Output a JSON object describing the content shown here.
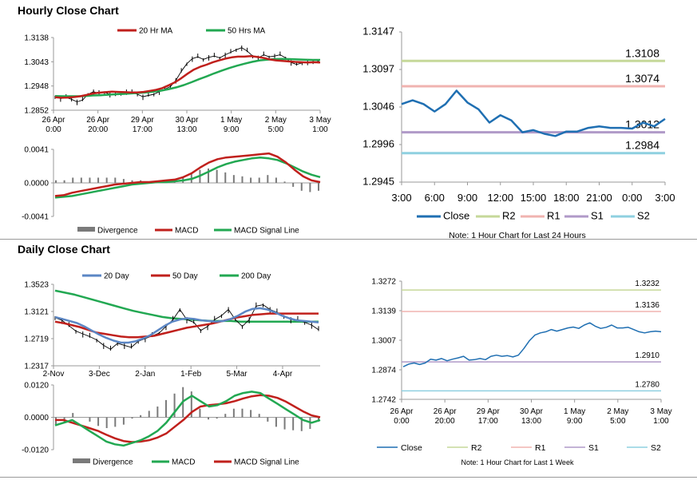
{
  "sections": {
    "hourly_title": "Hourly Close Chart",
    "daily_title": "Daily Close Chart"
  },
  "colors": {
    "price": "#000000",
    "ma_red": "#c0201c",
    "ma_green": "#22a852",
    "ma_blue": "#5b86c4",
    "close": "#1f6fb2",
    "r2": "#c6d89a",
    "r1": "#f0b3b0",
    "s1": "#b09ac8",
    "s2": "#8fd0e0",
    "divergence": "#7a7a7a",
    "axis": "#9a9a9a"
  },
  "chart_data": [
    {
      "id": "hourly-price",
      "type": "line",
      "title": "Hourly Close Chart",
      "legend": [
        "20 Hr MA",
        "50 Hrs MA"
      ],
      "y_ticks": [
        "1.3138",
        "1.3043",
        "1.2948",
        "1.2852"
      ],
      "ylim": [
        1.2852,
        1.3138
      ],
      "x_ticks": [
        [
          "26 Apr",
          "0:00"
        ],
        [
          "26 Apr",
          "20:00"
        ],
        [
          "29 Apr",
          "17:00"
        ],
        [
          "30 Apr",
          "13:00"
        ],
        [
          "1 May",
          "9:00"
        ],
        [
          "2 May",
          "5:00"
        ],
        [
          "3 May",
          "1:00"
        ]
      ],
      "series": [
        {
          "name": "Price",
          "values": [
            1.2905,
            1.2898,
            1.2902,
            1.2895,
            1.2885,
            1.2892,
            1.2915,
            1.2925,
            1.2918,
            1.2922,
            1.2915,
            1.2912,
            1.2918,
            1.2925,
            1.2921,
            1.2915,
            1.2905,
            1.291,
            1.2915,
            1.2925,
            1.2935,
            1.2945,
            1.297,
            1.3005,
            1.3035,
            1.3055,
            1.3062,
            1.3052,
            1.306,
            1.3065,
            1.3058,
            1.307,
            1.308,
            1.309,
            1.3098,
            1.3085,
            1.3065,
            1.3058,
            1.307,
            1.3062,
            1.3065,
            1.307,
            1.3058,
            1.304,
            1.3032,
            1.3038,
            1.3042,
            1.3038,
            1.3045
          ]
        },
        {
          "name": "20 Hr MA",
          "values": [
            1.2903,
            1.2901,
            1.2902,
            1.2904,
            1.2907,
            1.2912,
            1.2918,
            1.2921,
            1.2923,
            1.2925,
            1.2924,
            1.2923,
            1.2922,
            1.2922,
            1.2924,
            1.2928,
            1.2932,
            1.2939,
            1.295,
            1.2962,
            1.2978,
            1.2996,
            1.3012,
            1.3023,
            1.3031,
            1.3041,
            1.3048,
            1.3055,
            1.306,
            1.3063,
            1.3063,
            1.3065,
            1.3062,
            1.3058,
            1.3052,
            1.3048,
            1.3046,
            1.3044,
            1.3042,
            1.3041,
            1.304,
            1.3041,
            1.304
          ]
        },
        {
          "name": "50 Hrs MA",
          "values": [
            1.2908,
            1.2907,
            1.2907,
            1.2907,
            1.2908,
            1.291,
            1.2911,
            1.2913,
            1.2915,
            1.2916,
            1.2918,
            1.292,
            1.2922,
            1.2925,
            1.2929,
            1.2935,
            1.2942,
            1.2951,
            1.2962,
            1.2974,
            1.2985,
            1.2997,
            1.3008,
            1.3018,
            1.3027,
            1.3035,
            1.3042,
            1.3048,
            1.3051,
            1.3053,
            1.3054,
            1.3053,
            1.3052,
            1.3051,
            1.305,
            1.305
          ]
        }
      ]
    },
    {
      "id": "hourly-macd",
      "type": "line",
      "legend": [
        "Divergence",
        "MACD",
        "MACD Signal Line"
      ],
      "y_ticks": [
        "0.0041",
        "0.0000",
        "-0.0041"
      ],
      "ylim": [
        -0.0041,
        0.0041
      ],
      "series": [
        {
          "name": "MACD",
          "values": [
            -0.0016,
            -0.0015,
            -0.0012,
            -0.001,
            -0.0008,
            -0.0006,
            -0.0004,
            -0.0002,
            -0.0001,
            0.0,
            0.0001,
            0.0001,
            0.0002,
            0.0003,
            0.0004,
            0.0007,
            0.0012,
            0.0019,
            0.0025,
            0.0029,
            0.0031,
            0.0032,
            0.0033,
            0.0034,
            0.0035,
            0.0036,
            0.0032,
            0.0025,
            0.0016,
            0.0008,
            0.0003,
            0.0001
          ]
        },
        {
          "name": "MACD Signal Line",
          "values": [
            -0.0018,
            -0.0017,
            -0.0016,
            -0.0014,
            -0.0012,
            -0.001,
            -0.0008,
            -0.0006,
            -0.0004,
            -0.0002,
            -0.0001,
            0.0,
            0.0001,
            0.0001,
            0.0002,
            0.0003,
            0.0005,
            0.0009,
            0.0014,
            0.0019,
            0.0023,
            0.0026,
            0.0028,
            0.003,
            0.0031,
            0.003,
            0.0028,
            0.0024,
            0.0019,
            0.0014,
            0.001,
            0.0007
          ]
        }
      ]
    },
    {
      "id": "hourly-levels",
      "type": "line",
      "note": "Note: 1 Hour Chart for Last 24 Hours",
      "y_ticks": [
        "1.3147",
        "1.3097",
        "1.3046",
        "1.2996",
        "1.2945"
      ],
      "ylim": [
        1.2945,
        1.3147
      ],
      "x_ticks": [
        "3:00",
        "6:00",
        "9:00",
        "12:00",
        "15:00",
        "18:00",
        "21:00",
        "0:00",
        "3:00"
      ],
      "legend": [
        "Close",
        "R2",
        "R1",
        "S1",
        "S2"
      ],
      "levels": {
        "R2": 1.3108,
        "R1": 1.3074,
        "S1": 1.3012,
        "S2": 1.2984
      },
      "level_labels": {
        "R2": "1.3108",
        "R1": "1.3074",
        "S1": "1.3012",
        "S2": "1.2984"
      },
      "series": [
        {
          "name": "Close",
          "values": [
            1.305,
            1.3055,
            1.305,
            1.304,
            1.305,
            1.3068,
            1.3052,
            1.3043,
            1.3025,
            1.3035,
            1.3028,
            1.3012,
            1.3015,
            1.301,
            1.3007,
            1.3013,
            1.3013,
            1.3018,
            1.302,
            1.3018,
            1.3018,
            1.3017,
            1.3025,
            1.302,
            1.303
          ]
        }
      ]
    },
    {
      "id": "daily-price",
      "type": "line",
      "title": "Daily Close Chart",
      "legend": [
        "20 Day",
        "50 Day",
        "200 Day"
      ],
      "y_ticks": [
        "1.3523",
        "1.3121",
        "1.2719",
        "1.2317"
      ],
      "ylim": [
        1.2317,
        1.3523
      ],
      "x_ticks": [
        "2-Nov",
        "3-Dec",
        "2-Jan",
        "1-Feb",
        "5-Mar",
        "4-Apr"
      ],
      "series": [
        {
          "name": "Price",
          "values": [
            1.303,
            1.299,
            1.291,
            1.283,
            1.279,
            1.275,
            1.27,
            1.262,
            1.256,
            1.265,
            1.262,
            1.259,
            1.268,
            1.272,
            1.276,
            1.28,
            1.29,
            1.3,
            1.315,
            1.3,
            1.296,
            1.284,
            1.29,
            1.3,
            1.306,
            1.315,
            1.3,
            1.29,
            1.3,
            1.32,
            1.322,
            1.315,
            1.311,
            1.305,
            1.3,
            1.3,
            1.296,
            1.292,
            1.285
          ]
        },
        {
          "name": "20 Day",
          "values": [
            1.304,
            1.301,
            1.298,
            1.295,
            1.29,
            1.284,
            1.278,
            1.273,
            1.269,
            1.266,
            1.266,
            1.268,
            1.272,
            1.277,
            1.284,
            1.291,
            1.297,
            1.3,
            1.302,
            1.301,
            1.299,
            1.298,
            1.297,
            1.298,
            1.301,
            1.306,
            1.312,
            1.316,
            1.317,
            1.315,
            1.311,
            1.306,
            1.302,
            1.299,
            1.298,
            1.297,
            1.296
          ]
        },
        {
          "name": "50 Day",
          "values": [
            1.297,
            1.295,
            1.292,
            1.289,
            1.285,
            1.281,
            1.279,
            1.277,
            1.275,
            1.274,
            1.274,
            1.275,
            1.276,
            1.279,
            1.282,
            1.285,
            1.288,
            1.29,
            1.292,
            1.294,
            1.297,
            1.3,
            1.303,
            1.305,
            1.307,
            1.308,
            1.309,
            1.309,
            1.309,
            1.309,
            1.309,
            1.309,
            1.309
          ]
        },
        {
          "name": "200 Day",
          "values": [
            1.343,
            1.34,
            1.337,
            1.333,
            1.329,
            1.325,
            1.321,
            1.317,
            1.313,
            1.31,
            1.307,
            1.304,
            1.302,
            1.301,
            1.3,
            1.299,
            1.298,
            1.298,
            1.298,
            1.297,
            1.297,
            1.297,
            1.297,
            1.297,
            1.297,
            1.297,
            1.297,
            1.297
          ]
        }
      ]
    },
    {
      "id": "daily-macd",
      "type": "line",
      "legend": [
        "Divergence",
        "MACD",
        "MACD Signal Line"
      ],
      "y_ticks": [
        "0.0120",
        "0.0000",
        "-0.0120"
      ],
      "ylim": [
        -0.012,
        0.012
      ],
      "series": [
        {
          "name": "MACD",
          "values": [
            -0.003,
            -0.002,
            -0.001,
            -0.003,
            -0.005,
            -0.007,
            -0.009,
            -0.01,
            -0.0105,
            -0.0095,
            -0.0085,
            -0.007,
            -0.005,
            -0.002,
            0.002,
            0.006,
            0.008,
            0.006,
            0.004,
            0.0045,
            0.006,
            0.008,
            0.009,
            0.0095,
            0.009,
            0.007,
            0.005,
            0.003,
            0.001,
            -0.001,
            -0.002,
            -0.001
          ]
        },
        {
          "name": "MACD Signal Line",
          "values": [
            -0.001,
            -0.001,
            -0.002,
            -0.003,
            -0.004,
            -0.005,
            -0.0065,
            -0.0078,
            -0.0088,
            -0.0092,
            -0.009,
            -0.0085,
            -0.0075,
            -0.006,
            -0.0035,
            -0.001,
            0.002,
            0.004,
            0.0045,
            0.0048,
            0.0052,
            0.006,
            0.007,
            0.0078,
            0.0082,
            0.008,
            0.0072,
            0.0058,
            0.004,
            0.0022,
            0.0007,
            0.0
          ]
        }
      ]
    },
    {
      "id": "daily-levels",
      "type": "line",
      "note": "Note: 1 Hour Chart for Last 1 Week",
      "y_ticks": [
        "1.3272",
        "1.3139",
        "1.3007",
        "1.2874",
        "1.2742"
      ],
      "ylim": [
        1.2742,
        1.3272
      ],
      "x_ticks": [
        [
          "26 Apr",
          "0:00"
        ],
        [
          "26 Apr",
          "20:00"
        ],
        [
          "29 Apr",
          "17:00"
        ],
        [
          "30 Apr",
          "13:00"
        ],
        [
          "1 May",
          "9:00"
        ],
        [
          "2 May",
          "5:00"
        ],
        [
          "3 May",
          "1:00"
        ]
      ],
      "legend": [
        "Close",
        "R2",
        "R1",
        "S1",
        "S2"
      ],
      "levels": {
        "R2": 1.3232,
        "R1": 1.3136,
        "S1": 1.291,
        "S2": 1.278
      },
      "level_labels": {
        "R2": "1.3232",
        "R1": "1.3136",
        "S1": "1.2910",
        "S2": "1.2780"
      },
      "series": [
        {
          "name": "Close",
          "values": [
            1.2888,
            1.29,
            1.2905,
            1.2898,
            1.2905,
            1.2922,
            1.2918,
            1.2925,
            1.2915,
            1.2922,
            1.2928,
            1.2935,
            1.2918,
            1.292,
            1.2925,
            1.292,
            1.2935,
            1.294,
            1.2935,
            1.2938,
            1.2932,
            1.294,
            1.297,
            1.3005,
            1.303,
            1.304,
            1.3045,
            1.3055,
            1.3048,
            1.3055,
            1.3062,
            1.3066,
            1.306,
            1.3075,
            1.3085,
            1.307,
            1.306,
            1.3065,
            1.3075,
            1.3062,
            1.3062,
            1.3065,
            1.3055,
            1.3045,
            1.304,
            1.3045,
            1.3048,
            1.3045
          ]
        }
      ]
    }
  ]
}
